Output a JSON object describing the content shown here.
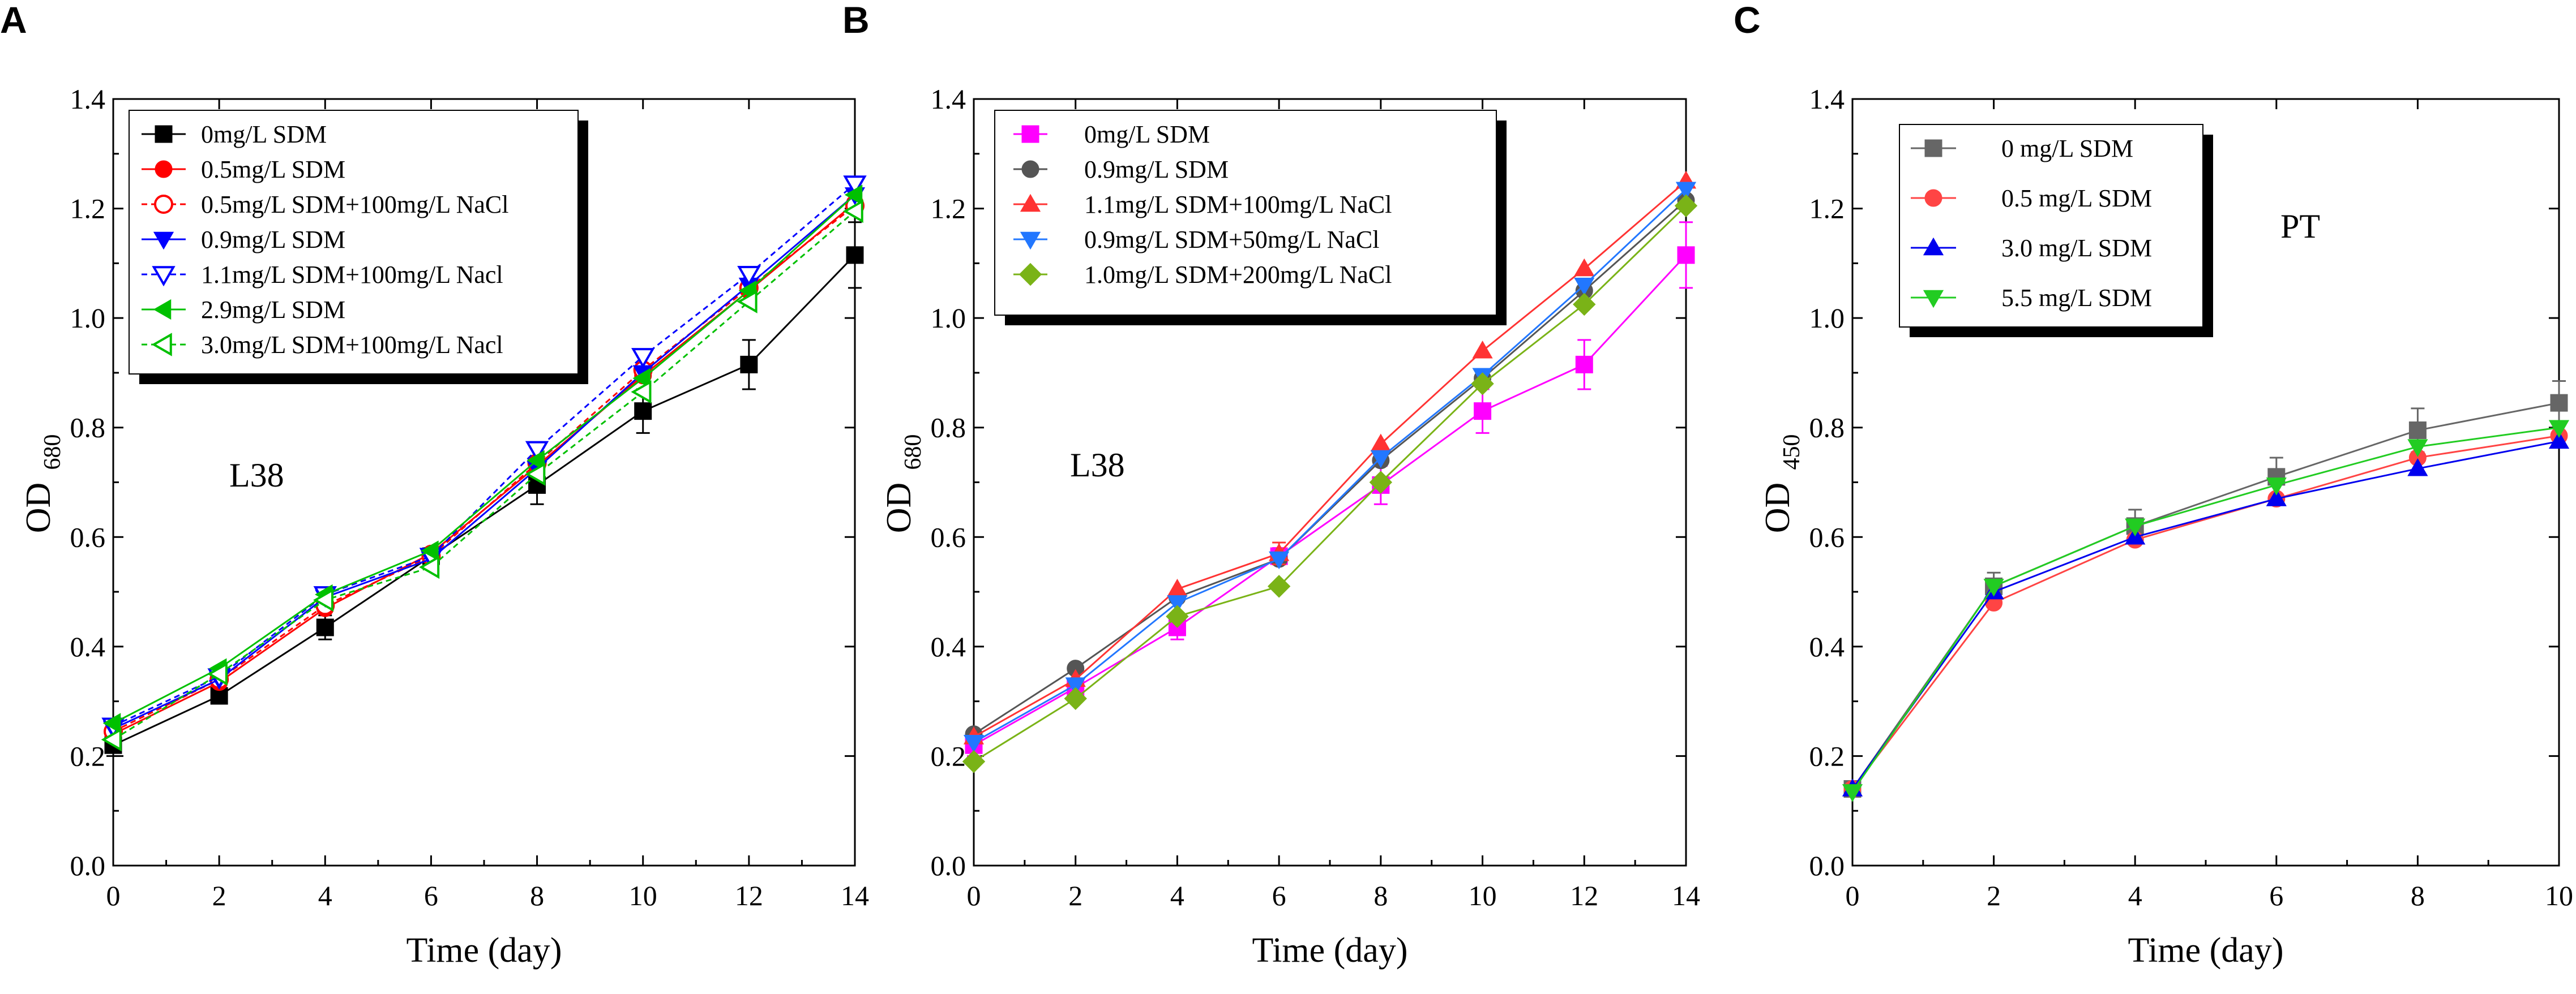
{
  "chart_data": [
    {
      "type": "line",
      "panel": "A",
      "annotation": "L38",
      "xlabel": "Time (day)",
      "ylabel": "OD",
      "ylabel_sub": "680",
      "xlim": [
        0,
        14
      ],
      "ylim": [
        0.0,
        1.4
      ],
      "xticks": [
        0,
        2,
        4,
        6,
        8,
        10,
        12,
        14
      ],
      "xtick_labels": [
        "0",
        "2",
        "4",
        "6",
        "8",
        "10",
        "12",
        "14"
      ],
      "yticks": [
        0.0,
        0.2,
        0.4,
        0.6,
        0.8,
        1.0,
        1.2,
        1.4
      ],
      "ytick_labels": [
        "0.0",
        "0.2",
        "0.4",
        "0.6",
        "0.8",
        "1.0",
        "1.2",
        "1.4"
      ],
      "grid": false,
      "legend_position": "top-left",
      "x": [
        0,
        2,
        4,
        6,
        8,
        10,
        12,
        14
      ],
      "series": [
        {
          "name": "0mg/L SDM",
          "marker": "square",
          "filled": true,
          "color": "#000000",
          "dashed": false,
          "values": [
            0.22,
            0.31,
            0.435,
            0.565,
            0.695,
            0.83,
            0.915,
            1.115
          ],
          "errors": [
            0.02,
            0.012,
            0.022,
            0.015,
            0.035,
            0.04,
            0.045,
            0.06
          ]
        },
        {
          "name": "0.5mg/L SDM",
          "marker": "circle",
          "filled": true,
          "color": "#ff0000",
          "dashed": false,
          "values": [
            0.24,
            0.335,
            0.47,
            0.57,
            0.73,
            0.895,
            1.05,
            1.21
          ],
          "errors": []
        },
        {
          "name": "0.5mg/L SDM+100mg/L NaCl",
          "marker": "circle",
          "filled": false,
          "color": "#ff0000",
          "dashed": true,
          "values": [
            0.245,
            0.34,
            0.475,
            0.565,
            0.735,
            0.905,
            1.055,
            1.205
          ],
          "errors": []
        },
        {
          "name": "0.9mg/L SDM",
          "marker": "triangle-down",
          "filled": true,
          "color": "#0000ff",
          "dashed": false,
          "values": [
            0.25,
            0.34,
            0.49,
            0.56,
            0.725,
            0.9,
            1.06,
            1.225
          ],
          "errors": []
        },
        {
          "name": "1.1mg/L SDM+100mg/L Nacl",
          "marker": "triangle-down",
          "filled": false,
          "color": "#0000ff",
          "dashed": true,
          "values": [
            0.255,
            0.345,
            0.495,
            0.565,
            0.76,
            0.93,
            1.08,
            1.245
          ],
          "errors": []
        },
        {
          "name": "2.9mg/L SDM",
          "marker": "triangle-left",
          "filled": true,
          "color": "#00c000",
          "dashed": false,
          "values": [
            0.26,
            0.36,
            0.495,
            0.575,
            0.74,
            0.89,
            1.05,
            1.225
          ],
          "errors": []
        },
        {
          "name": "3.0mg/L SDM+100mg/L Nacl",
          "marker": "triangle-left",
          "filled": false,
          "color": "#00c000",
          "dashed": true,
          "values": [
            0.23,
            0.35,
            0.485,
            0.545,
            0.715,
            0.865,
            1.03,
            1.195
          ],
          "errors": []
        }
      ]
    },
    {
      "type": "line",
      "panel": "B",
      "annotation": "L38",
      "xlabel": "Time (day)",
      "ylabel": "OD",
      "ylabel_sub": "680",
      "xlim": [
        0,
        14
      ],
      "ylim": [
        0.0,
        1.4
      ],
      "xticks": [
        0,
        2,
        4,
        6,
        8,
        10,
        12,
        14
      ],
      "xtick_labels": [
        "0",
        "2",
        "4",
        "6",
        "8",
        "10",
        "12",
        "14"
      ],
      "yticks": [
        0.0,
        0.2,
        0.4,
        0.6,
        0.8,
        1.0,
        1.2,
        1.4
      ],
      "ytick_labels": [
        "0.0",
        "0.2",
        "0.4",
        "0.6",
        "0.8",
        "1.0",
        "1.2",
        "1.4"
      ],
      "grid": false,
      "legend_position": "top-left",
      "x": [
        0,
        2,
        4,
        6,
        8,
        10,
        12,
        14
      ],
      "series": [
        {
          "name": "0mg/L SDM",
          "marker": "square",
          "filled": true,
          "color": "#ff00ff",
          "dashed": false,
          "values": [
            0.22,
            0.325,
            0.435,
            0.565,
            0.695,
            0.83,
            0.915,
            1.115
          ],
          "errors": [
            0.02,
            0.012,
            0.022,
            0.015,
            0.035,
            0.04,
            0.045,
            0.06
          ]
        },
        {
          "name": "0.9mg/L SDM",
          "marker": "circle",
          "filled": true,
          "color": "#555555",
          "dashed": false,
          "values": [
            0.24,
            0.36,
            0.49,
            0.56,
            0.74,
            0.89,
            1.05,
            1.215
          ],
          "errors": []
        },
        {
          "name": "1.1mg/L SDM+100mg/L NaCl",
          "marker": "triangle-up",
          "filled": true,
          "color": "#ff3333",
          "dashed": false,
          "values": [
            0.235,
            0.34,
            0.505,
            0.57,
            0.77,
            0.94,
            1.09,
            1.25
          ],
          "errors": [
            0,
            0,
            0,
            0.02,
            0,
            0,
            0,
            0
          ]
        },
        {
          "name": "0.9mg/L SDM+50mg/L NaCl",
          "marker": "triangle-down",
          "filled": true,
          "color": "#2277ff",
          "dashed": false,
          "values": [
            0.225,
            0.33,
            0.48,
            0.56,
            0.745,
            0.895,
            1.06,
            1.235
          ],
          "errors": []
        },
        {
          "name": "1.0mg/L SDM+200mg/L NaCl",
          "marker": "diamond",
          "filled": true,
          "color": "#7ab317",
          "dashed": false,
          "values": [
            0.19,
            0.305,
            0.455,
            0.51,
            0.7,
            0.88,
            1.025,
            1.205
          ],
          "errors": []
        }
      ]
    },
    {
      "type": "line",
      "panel": "C",
      "annotation": "PT",
      "xlabel": "Time (day)",
      "ylabel": "OD",
      "ylabel_sub": "450",
      "xlim": [
        0,
        10
      ],
      "ylim": [
        0.0,
        1.4
      ],
      "xticks": [
        0,
        2,
        4,
        6,
        8,
        10
      ],
      "xtick_labels": [
        "0",
        "2",
        "4",
        "6",
        "8",
        "10"
      ],
      "yticks": [
        0.0,
        0.2,
        0.4,
        0.6,
        0.8,
        1.0,
        1.2,
        1.4
      ],
      "ytick_labels": [
        "0.0",
        "0.2",
        "0.4",
        "0.6",
        "0.8",
        "1.0",
        "1.2",
        "1.4"
      ],
      "grid": false,
      "legend_position": "top-left",
      "x": [
        0,
        2,
        4,
        6,
        8,
        10
      ],
      "series": [
        {
          "name": "0 mg/L SDM",
          "marker": "square",
          "filled": true,
          "color": "#666666",
          "dashed": false,
          "values": [
            0.14,
            0.51,
            0.62,
            0.71,
            0.795,
            0.845
          ],
          "errors": [
            0.01,
            0.025,
            0.03,
            0.035,
            0.04,
            0.04
          ]
        },
        {
          "name": "0.5 mg/L SDM",
          "marker": "circle",
          "filled": true,
          "color": "#ff4444",
          "dashed": false,
          "values": [
            0.14,
            0.48,
            0.595,
            0.67,
            0.745,
            0.785
          ],
          "errors": []
        },
        {
          "name": "3.0 mg/L SDM",
          "marker": "triangle-up",
          "filled": true,
          "color": "#0000ee",
          "dashed": false,
          "values": [
            0.14,
            0.5,
            0.6,
            0.67,
            0.725,
            0.775
          ],
          "errors": []
        },
        {
          "name": "5.5 mg/L SDM",
          "marker": "triangle-down",
          "filled": true,
          "color": "#22cc22",
          "dashed": false,
          "values": [
            0.135,
            0.51,
            0.62,
            0.695,
            0.765,
            0.8
          ],
          "errors": []
        }
      ]
    }
  ]
}
